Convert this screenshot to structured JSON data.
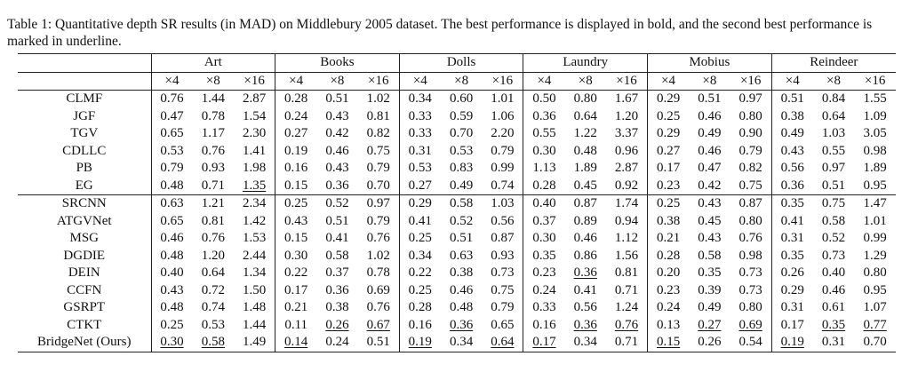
{
  "caption": "Table 1: Quantitative depth SR results (in MAD) on Middlebury 2005 dataset. The best performance is displayed in bold, and the second best performance is marked in underline.",
  "datasets": [
    "Art",
    "Books",
    "Dolls",
    "Laundry",
    "Mobius",
    "Reindeer"
  ],
  "scales": [
    "×4",
    "×8",
    "×16"
  ],
  "group1": [
    {
      "method": "CLMF",
      "values": [
        "0.76",
        "1.44",
        "2.87",
        "0.28",
        "0.51",
        "1.02",
        "0.34",
        "0.60",
        "1.01",
        "0.50",
        "0.80",
        "1.67",
        "0.29",
        "0.51",
        "0.97",
        "0.51",
        "0.84",
        "1.55"
      ],
      "best": [],
      "second": []
    },
    {
      "method": "JGF",
      "values": [
        "0.47",
        "0.78",
        "1.54",
        "0.24",
        "0.43",
        "0.81",
        "0.33",
        "0.59",
        "1.06",
        "0.36",
        "0.64",
        "1.20",
        "0.25",
        "0.46",
        "0.80",
        "0.38",
        "0.64",
        "1.09"
      ],
      "best": [],
      "second": []
    },
    {
      "method": "TGV",
      "values": [
        "0.65",
        "1.17",
        "2.30",
        "0.27",
        "0.42",
        "0.82",
        "0.33",
        "0.70",
        "2.20",
        "0.55",
        "1.22",
        "3.37",
        "0.29",
        "0.49",
        "0.90",
        "0.49",
        "1.03",
        "3.05"
      ],
      "best": [],
      "second": []
    },
    {
      "method": "CDLLC",
      "values": [
        "0.53",
        "0.76",
        "1.41",
        "0.19",
        "0.46",
        "0.75",
        "0.31",
        "0.53",
        "0.79",
        "0.30",
        "0.48",
        "0.96",
        "0.27",
        "0.46",
        "0.79",
        "0.43",
        "0.55",
        "0.98"
      ],
      "best": [],
      "second": []
    },
    {
      "method": "PB",
      "values": [
        "0.79",
        "0.93",
        "1.98",
        "0.16",
        "0.43",
        "0.79",
        "0.53",
        "0.83",
        "0.99",
        "1.13",
        "1.89",
        "2.87",
        "0.17",
        "0.47",
        "0.82",
        "0.56",
        "0.97",
        "1.89"
      ],
      "best": [],
      "second": []
    },
    {
      "method": "EG",
      "values": [
        "0.48",
        "0.71",
        "1.35",
        "0.15",
        "0.36",
        "0.70",
        "0.27",
        "0.49",
        "0.74",
        "0.28",
        "0.45",
        "0.92",
        "0.23",
        "0.42",
        "0.75",
        "0.36",
        "0.51",
        "0.95"
      ],
      "best": [],
      "second": [
        2
      ]
    }
  ],
  "group2": [
    {
      "method": "SRCNN",
      "values": [
        "0.63",
        "1.21",
        "2.34",
        "0.25",
        "0.52",
        "0.97",
        "0.29",
        "0.58",
        "1.03",
        "0.40",
        "0.87",
        "1.74",
        "0.25",
        "0.43",
        "0.87",
        "0.35",
        "0.75",
        "1.47"
      ],
      "best": [],
      "second": []
    },
    {
      "method": "ATGVNet",
      "values": [
        "0.65",
        "0.81",
        "1.42",
        "0.43",
        "0.51",
        "0.79",
        "0.41",
        "0.52",
        "0.56",
        "0.37",
        "0.89",
        "0.94",
        "0.38",
        "0.45",
        "0.80",
        "0.41",
        "0.58",
        "1.01"
      ],
      "best": [
        8
      ],
      "second": []
    },
    {
      "method": "MSG",
      "values": [
        "0.46",
        "0.76",
        "1.53",
        "0.15",
        "0.41",
        "0.76",
        "0.25",
        "0.51",
        "0.87",
        "0.30",
        "0.46",
        "1.12",
        "0.21",
        "0.43",
        "0.76",
        "0.31",
        "0.52",
        "0.99"
      ],
      "best": [],
      "second": []
    },
    {
      "method": "DGDIE",
      "values": [
        "0.48",
        "1.20",
        "2.44",
        "0.30",
        "0.58",
        "1.02",
        "0.34",
        "0.63",
        "0.93",
        "0.35",
        "0.86",
        "1.56",
        "0.28",
        "0.58",
        "0.98",
        "0.35",
        "0.73",
        "1.29"
      ],
      "best": [],
      "second": []
    },
    {
      "method": "DEIN",
      "values": [
        "0.40",
        "0.64",
        "1.34",
        "0.22",
        "0.37",
        "0.78",
        "0.22",
        "0.38",
        "0.73",
        "0.23",
        "0.36",
        "0.81",
        "0.20",
        "0.35",
        "0.73",
        "0.26",
        "0.40",
        "0.80"
      ],
      "best": [
        2
      ],
      "second": [
        10
      ]
    },
    {
      "method": "CCFN",
      "values": [
        "0.43",
        "0.72",
        "1.50",
        "0.17",
        "0.36",
        "0.69",
        "0.25",
        "0.46",
        "0.75",
        "0.24",
        "0.41",
        "0.71",
        "0.23",
        "0.39",
        "0.73",
        "0.29",
        "0.46",
        "0.95"
      ],
      "best": [
        11
      ],
      "second": []
    },
    {
      "method": "GSRPT",
      "values": [
        "0.48",
        "0.74",
        "1.48",
        "0.21",
        "0.38",
        "0.76",
        "0.28",
        "0.48",
        "0.79",
        "0.33",
        "0.56",
        "1.24",
        "0.24",
        "0.49",
        "0.80",
        "0.31",
        "0.61",
        "1.07"
      ],
      "best": [],
      "second": []
    },
    {
      "method": "CTKT",
      "values": [
        "0.25",
        "0.53",
        "1.44",
        "0.11",
        "0.26",
        "0.67",
        "0.16",
        "0.36",
        "0.65",
        "0.16",
        "0.36",
        "0.76",
        "0.13",
        "0.27",
        "0.69",
        "0.17",
        "0.35",
        "0.77"
      ],
      "best": [
        0,
        1,
        3,
        6,
        9,
        12,
        15
      ],
      "second": [
        4,
        5,
        7,
        10,
        11,
        13,
        14,
        16,
        17
      ]
    },
    {
      "method": "BridgeNet (Ours)",
      "values": [
        "0.30",
        "0.58",
        "1.49",
        "0.14",
        "0.24",
        "0.51",
        "0.19",
        "0.34",
        "0.64",
        "0.17",
        "0.34",
        "0.71",
        "0.15",
        "0.26",
        "0.54",
        "0.19",
        "0.31",
        "0.70"
      ],
      "best": [
        4,
        5,
        7,
        10,
        11,
        13,
        14,
        16,
        17
      ],
      "second": [
        0,
        1,
        3,
        6,
        8,
        9,
        12,
        15
      ]
    }
  ]
}
